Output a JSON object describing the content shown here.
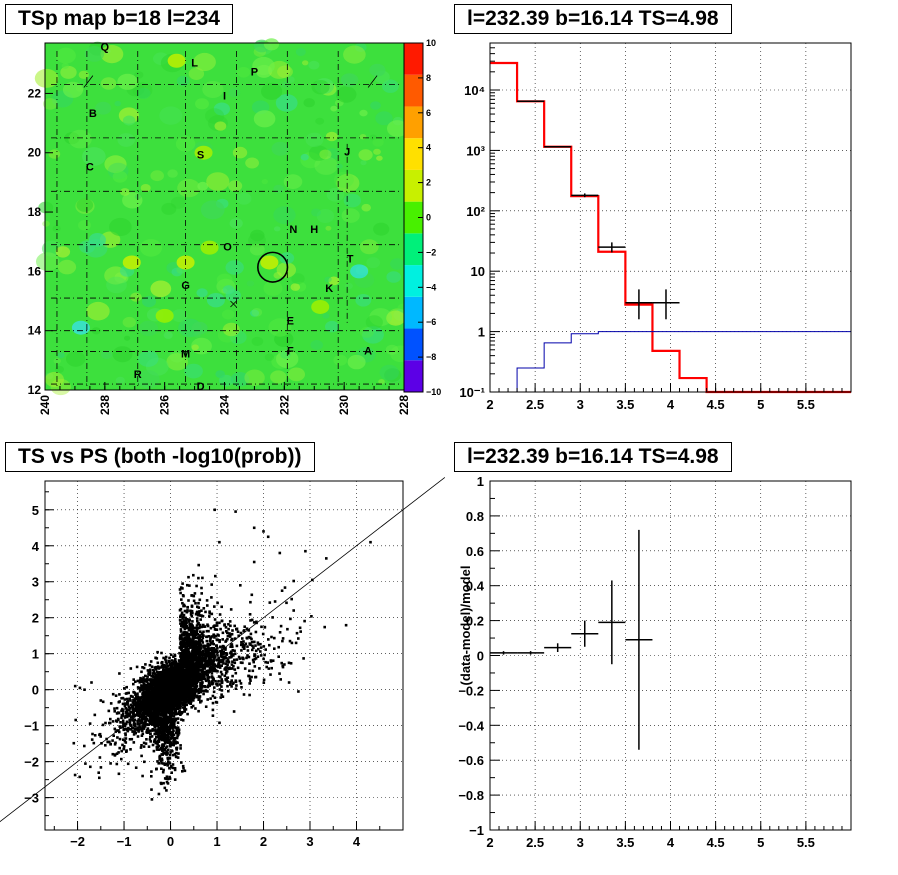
{
  "chart_data": [
    {
      "type": "heatmap",
      "title": "TSp map b=18 l=234",
      "xlabel": "",
      "ylabel": "",
      "xlim": [
        240,
        228
      ],
      "ylim": [
        12,
        23.7
      ],
      "x_ticks": [
        "240",
        "238",
        "236",
        "234",
        "232",
        "230",
        "228"
      ],
      "y_ticks": [
        "12",
        "14",
        "16",
        "18",
        "20",
        "22"
      ],
      "colorbar": {
        "range": [
          -10,
          10
        ],
        "ticks": [
          "10",
          "8",
          "6",
          "4",
          "2",
          "0",
          "−2",
          "−4",
          "−6",
          "−8",
          "−10"
        ],
        "colors": [
          "#5c00e6",
          "#0052ff",
          "#00b8ff",
          "#00f0e0",
          "#00f07a",
          "#48f000",
          "#c8f000",
          "#ffe000",
          "#ffa000",
          "#ff5a00",
          "#ff1a00"
        ]
      },
      "background_color": "#3de03d",
      "region_labels": [
        {
          "text": "Q",
          "l": 238.0,
          "b": 23.55
        },
        {
          "text": "L",
          "l": 235.0,
          "b": 23.0
        },
        {
          "text": "P",
          "l": 233.0,
          "b": 22.7
        },
        {
          "text": "I",
          "l": 234.0,
          "b": 21.9
        },
        {
          "text": "B",
          "l": 238.4,
          "b": 21.3
        },
        {
          "text": "S",
          "l": 234.8,
          "b": 19.9
        },
        {
          "text": "J",
          "l": 229.9,
          "b": 20.0
        },
        {
          "text": "C",
          "l": 238.5,
          "b": 19.5
        },
        {
          "text": "N",
          "l": 231.7,
          "b": 17.4
        },
        {
          "text": "H",
          "l": 231.0,
          "b": 17.4
        },
        {
          "text": "O",
          "l": 233.9,
          "b": 16.8
        },
        {
          "text": "T",
          "l": 229.8,
          "b": 16.4
        },
        {
          "text": "G",
          "l": 235.3,
          "b": 15.5
        },
        {
          "text": "K",
          "l": 230.5,
          "b": 15.4
        },
        {
          "text": "E",
          "l": 231.8,
          "b": 14.3
        },
        {
          "text": "M",
          "l": 235.3,
          "b": 13.2
        },
        {
          "text": "F",
          "l": 231.8,
          "b": 13.3
        },
        {
          "text": "A",
          "l": 229.2,
          "b": 13.3
        },
        {
          "text": "R",
          "l": 236.9,
          "b": 12.5
        },
        {
          "text": "D",
          "l": 234.8,
          "b": 12.1
        }
      ],
      "circle": {
        "l": 232.39,
        "b": 16.14,
        "r": 0.5
      },
      "cross": {
        "l": 233.7,
        "b": 14.9
      }
    },
    {
      "type": "line",
      "title": "l=232.39 b=16.14 TS=4.98",
      "xlabel": "",
      "ylabel": "",
      "xlim": [
        2,
        6
      ],
      "ylim": [
        0.1,
        60000
      ],
      "yscale": "log",
      "x_ticks": [
        2,
        2.5,
        3,
        3.5,
        4,
        4.5,
        5,
        5.5
      ],
      "y_ticks": [
        {
          "v": 0.1,
          "label": "10⁻¹"
        },
        {
          "v": 1,
          "label": "1"
        },
        {
          "v": 10,
          "label": "10"
        },
        {
          "v": 100,
          "label": "10²"
        },
        {
          "v": 1000,
          "label": "10³"
        },
        {
          "v": 10000,
          "label": "10⁴"
        }
      ],
      "grid": true,
      "series": [
        {
          "color": "#ff0000",
          "style": "step",
          "edges": [
            2,
            2.3,
            2.6,
            2.9,
            3.2,
            3.5,
            3.8,
            4.1,
            4.4,
            6
          ],
          "values": [
            28000,
            6500,
            1150,
            175,
            21,
            2.8,
            0.48,
            0.17,
            0.1
          ]
        },
        {
          "color": "#0000aa",
          "style": "step",
          "edges": [
            2,
            2.3,
            2.6,
            2.9,
            3.2,
            3.5,
            3.8,
            4.1,
            4.4,
            6
          ],
          "values": [
            0.1,
            0.25,
            0.65,
            0.92,
            1.0,
            1.0,
            1.0,
            1.0,
            1.0
          ]
        },
        {
          "color": "#000000",
          "style": "points",
          "points": [
            {
              "x": 2.45,
              "xerr": 0.15,
              "y": 6500,
              "ylo": 6400,
              "yhi": 6600
            },
            {
              "x": 2.75,
              "xerr": 0.15,
              "y": 1150,
              "ylo": 1120,
              "yhi": 1180
            },
            {
              "x": 3.05,
              "xerr": 0.15,
              "y": 180,
              "ylo": 168,
              "yhi": 194
            },
            {
              "x": 3.35,
              "xerr": 0.15,
              "y": 25,
              "ylo": 20.5,
              "yhi": 30
            },
            {
              "x": 3.65,
              "xerr": 0.15,
              "y": 3.0,
              "ylo": 1.6,
              "yhi": 5.0
            },
            {
              "x": 3.95,
              "xerr": 0.15,
              "y": 3.0,
              "ylo": 1.6,
              "yhi": 5.0
            }
          ]
        }
      ]
    },
    {
      "type": "scatter",
      "title": "TS vs PS (both -log10(prob))",
      "xlabel": "",
      "ylabel": "",
      "xlim": [
        -2.7,
        5.0
      ],
      "ylim": [
        -3.9,
        5.8
      ],
      "x_ticks": [
        {
          "v": -2,
          "label": "−2"
        },
        {
          "v": -1,
          "label": "−1"
        },
        {
          "v": 0,
          "label": "0"
        },
        {
          "v": 1,
          "label": "1"
        },
        {
          "v": 2,
          "label": "2"
        },
        {
          "v": 3,
          "label": "3"
        },
        {
          "v": 4,
          "label": "4"
        }
      ],
      "y_ticks": [
        {
          "v": -3,
          "label": "−3"
        },
        {
          "v": -2,
          "label": "−2"
        },
        {
          "v": -1,
          "label": "−1"
        },
        {
          "v": 0,
          "label": "0"
        },
        {
          "v": 1,
          "label": "1"
        },
        {
          "v": 2,
          "label": "2"
        },
        {
          "v": 3,
          "label": "3"
        },
        {
          "v": 4,
          "label": "4"
        },
        {
          "v": 5,
          "label": "5"
        }
      ],
      "grid": true,
      "reference_line": {
        "slope": 1,
        "intercept": 0
      },
      "approx_points": 5000,
      "outliers": [
        [
          0.95,
          5.0
        ],
        [
          1.4,
          4.95
        ],
        [
          1.8,
          4.5
        ],
        [
          2.0,
          4.4
        ],
        [
          2.1,
          4.25
        ],
        [
          1.05,
          4.1
        ],
        [
          2.35,
          3.8
        ],
        [
          2.9,
          3.85
        ],
        [
          3.35,
          3.65
        ],
        [
          4.3,
          4.1
        ],
        [
          1.8,
          3.55
        ],
        [
          0.6,
          3.1
        ],
        [
          0.5,
          2.6
        ],
        [
          2.65,
          2.2
        ],
        [
          2.7,
          1.3
        ],
        [
          2.45,
          0.7
        ],
        [
          2.75,
          -0.05
        ],
        [
          2.55,
          0.2
        ],
        [
          -2.05,
          0.1
        ],
        [
          -1.95,
          0.05
        ],
        [
          -1.7,
          0.2
        ],
        [
          -1.5,
          -0.3
        ],
        [
          -1.2,
          -0.6
        ],
        [
          -0.7,
          -1.3
        ],
        [
          -0.3,
          -2.2
        ],
        [
          -0.15,
          -2.6
        ],
        [
          -0.4,
          -3.05
        ],
        [
          -0.25,
          -2.9
        ],
        [
          -0.6,
          -2.4
        ],
        [
          0.1,
          -2.5
        ],
        [
          -1.85,
          0.0
        ],
        [
          -1.1,
          0.45
        ],
        [
          3.05,
          3.05
        ],
        [
          2.25,
          2.45
        ],
        [
          1.5,
          2.9
        ],
        [
          2.4,
          2.75
        ]
      ]
    },
    {
      "type": "scatter",
      "title": "l=232.39 b=16.14 TS=4.98",
      "xlabel": "",
      "ylabel": "(data-model)/model",
      "xlim": [
        2,
        6
      ],
      "ylim": [
        -1,
        1
      ],
      "x_ticks": [
        2,
        2.5,
        3,
        3.5,
        4,
        4.5,
        5,
        5.5
      ],
      "y_ticks": [
        {
          "v": 1,
          "label": "1"
        },
        {
          "v": 0.8,
          "label": "0.8"
        },
        {
          "v": 0.6,
          "label": "0.6"
        },
        {
          "v": 0.4,
          "label": "0.4"
        },
        {
          "v": 0.2,
          "label": "0.2"
        },
        {
          "v": 0,
          "label": "0"
        },
        {
          "v": -0.2,
          "label": "−0.2"
        },
        {
          "v": -0.4,
          "label": "−0.4"
        },
        {
          "v": -0.6,
          "label": "−0.6"
        },
        {
          "v": -0.8,
          "label": "−0.8"
        },
        {
          "v": -1,
          "label": "−1"
        }
      ],
      "grid": true,
      "points": [
        {
          "x": 2.15,
          "xerr": 0.15,
          "y": 0.015,
          "ylo": 0.005,
          "yhi": 0.025
        },
        {
          "x": 2.45,
          "xerr": 0.15,
          "y": 0.015,
          "ylo": 0.005,
          "yhi": 0.025
        },
        {
          "x": 2.75,
          "xerr": 0.15,
          "y": 0.045,
          "ylo": 0.02,
          "yhi": 0.07
        },
        {
          "x": 3.05,
          "xerr": 0.15,
          "y": 0.125,
          "ylo": 0.05,
          "yhi": 0.2
        },
        {
          "x": 3.35,
          "xerr": 0.15,
          "y": 0.19,
          "ylo": -0.05,
          "yhi": 0.43
        },
        {
          "x": 3.65,
          "xerr": 0.15,
          "y": 0.09,
          "ylo": -0.54,
          "yhi": 0.72
        }
      ]
    }
  ]
}
